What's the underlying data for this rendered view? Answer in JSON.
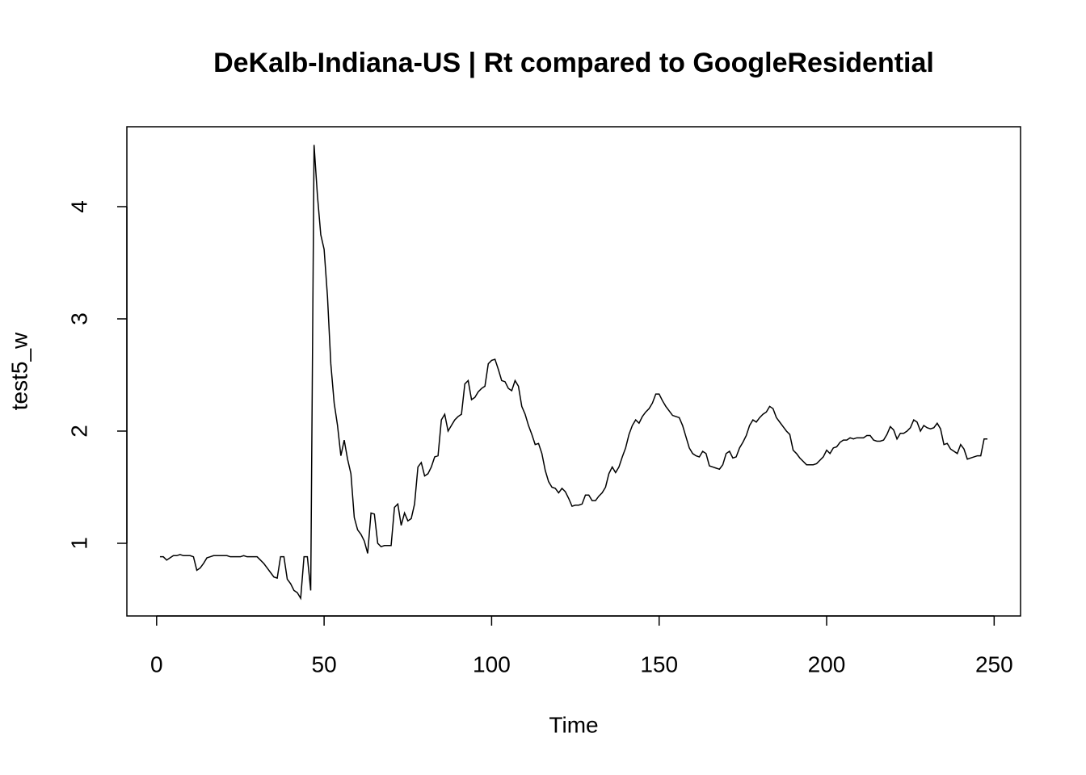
{
  "chart_data": {
    "type": "line",
    "title": "DeKalb-Indiana-US | Rt compared to GoogleResidential",
    "x_label": "Time",
    "y_label": "test5_w",
    "xlim": [
      -8.88,
      257.88
    ],
    "ylim": [
      0.3525,
      4.712
    ],
    "xticks": [
      0,
      50,
      100,
      150,
      200,
      250
    ],
    "yticks": [
      1,
      2,
      3,
      4
    ],
    "color": "#000000",
    "x": [
      1,
      2,
      3,
      4,
      5,
      6,
      7,
      8,
      9,
      10,
      11,
      12,
      13,
      14,
      15,
      16,
      17,
      18,
      19,
      20,
      21,
      22,
      23,
      24,
      25,
      26,
      27,
      28,
      29,
      30,
      31,
      32,
      33,
      34,
      35,
      36,
      37,
      38,
      39,
      40,
      41,
      42,
      43,
      44,
      45,
      46,
      47,
      48,
      49,
      50,
      51,
      52,
      53,
      54,
      55,
      56,
      57,
      58,
      59,
      60,
      61,
      62,
      63,
      64,
      65,
      66,
      67,
      68,
      69,
      70,
      71,
      72,
      73,
      74,
      75,
      76,
      77,
      78,
      79,
      80,
      81,
      82,
      83,
      84,
      85,
      86,
      87,
      88,
      89,
      90,
      91,
      92,
      93,
      94,
      95,
      96,
      97,
      98,
      99,
      100,
      101,
      102,
      103,
      104,
      105,
      106,
      107,
      108,
      109,
      110,
      111,
      112,
      113,
      114,
      115,
      116,
      117,
      118,
      119,
      120,
      121,
      122,
      123,
      124,
      125,
      126,
      127,
      128,
      129,
      130,
      131,
      132,
      133,
      134,
      135,
      136,
      137,
      138,
      139,
      140,
      141,
      142,
      143,
      144,
      145,
      146,
      147,
      148,
      149,
      150,
      151,
      152,
      153,
      154,
      155,
      156,
      157,
      158,
      159,
      160,
      161,
      162,
      163,
      164,
      165,
      166,
      167,
      168,
      169,
      170,
      171,
      172,
      173,
      174,
      175,
      176,
      177,
      178,
      179,
      180,
      181,
      182,
      183,
      184,
      185,
      186,
      187,
      188,
      189,
      190,
      191,
      192,
      193,
      194,
      195,
      196,
      197,
      198,
      199,
      200,
      201,
      202,
      203,
      204,
      205,
      206,
      207,
      208,
      209,
      210,
      211,
      212,
      213,
      214,
      215,
      216,
      217,
      218,
      219,
      220,
      221,
      222,
      223,
      224,
      225,
      226,
      227,
      228,
      229,
      230,
      231,
      232,
      233,
      234,
      235,
      236,
      237,
      238,
      239,
      240,
      241,
      242,
      243,
      244,
      245,
      246,
      247,
      248
    ],
    "values": [
      0.88,
      0.88,
      0.85,
      0.87,
      0.89,
      0.89,
      0.9,
      0.89,
      0.89,
      0.89,
      0.88,
      0.76,
      0.78,
      0.82,
      0.87,
      0.88,
      0.89,
      0.89,
      0.89,
      0.89,
      0.89,
      0.88,
      0.88,
      0.88,
      0.88,
      0.89,
      0.88,
      0.88,
      0.88,
      0.88,
      0.85,
      0.82,
      0.78,
      0.74,
      0.7,
      0.69,
      0.88,
      0.88,
      0.68,
      0.64,
      0.58,
      0.56,
      0.51,
      0.88,
      0.88,
      0.58,
      4.55,
      4.1,
      3.75,
      3.62,
      3.2,
      2.6,
      2.25,
      2.05,
      1.78,
      1.92,
      1.75,
      1.62,
      1.23,
      1.12,
      1.08,
      1.02,
      0.91,
      1.27,
      1.26,
      1.0,
      0.97,
      0.98,
      0.98,
      0.98,
      1.32,
      1.35,
      1.16,
      1.27,
      1.2,
      1.22,
      1.35,
      1.68,
      1.72,
      1.6,
      1.62,
      1.68,
      1.77,
      1.78,
      2.1,
      2.15,
      2.0,
      2.05,
      2.1,
      2.13,
      2.15,
      2.42,
      2.45,
      2.28,
      2.3,
      2.35,
      2.38,
      2.4,
      2.6,
      2.63,
      2.64,
      2.55,
      2.45,
      2.44,
      2.38,
      2.36,
      2.45,
      2.4,
      2.22,
      2.15,
      2.05,
      1.97,
      1.88,
      1.89,
      1.8,
      1.65,
      1.55,
      1.5,
      1.49,
      1.45,
      1.49,
      1.46,
      1.4,
      1.33,
      1.34,
      1.34,
      1.35,
      1.43,
      1.43,
      1.38,
      1.38,
      1.42,
      1.45,
      1.5,
      1.62,
      1.68,
      1.63,
      1.68,
      1.77,
      1.85,
      1.97,
      2.05,
      2.1,
      2.07,
      2.13,
      2.17,
      2.2,
      2.25,
      2.33,
      2.33,
      2.27,
      2.22,
      2.18,
      2.14,
      2.13,
      2.12,
      2.05,
      1.95,
      1.85,
      1.8,
      1.78,
      1.77,
      1.82,
      1.8,
      1.69,
      1.68,
      1.67,
      1.66,
      1.7,
      1.8,
      1.82,
      1.76,
      1.77,
      1.85,
      1.9,
      1.96,
      2.05,
      2.1,
      2.08,
      2.12,
      2.15,
      2.17,
      2.22,
      2.2,
      2.12,
      2.08,
      2.04,
      2.0,
      1.97,
      1.83,
      1.8,
      1.76,
      1.73,
      1.7,
      1.7,
      1.7,
      1.71,
      1.74,
      1.77,
      1.83,
      1.8,
      1.85,
      1.86,
      1.9,
      1.92,
      1.92,
      1.94,
      1.93,
      1.94,
      1.94,
      1.94,
      1.96,
      1.96,
      1.92,
      1.91,
      1.91,
      1.92,
      1.97,
      2.04,
      2.01,
      1.93,
      1.98,
      1.98,
      2.0,
      2.03,
      2.1,
      2.08,
      2.0,
      2.05,
      2.03,
      2.02,
      2.03,
      2.07,
      2.02,
      1.88,
      1.89,
      1.84,
      1.82,
      1.8,
      1.88,
      1.84,
      1.75,
      1.76,
      1.77,
      1.78,
      1.78,
      1.93,
      1.93
    ]
  }
}
